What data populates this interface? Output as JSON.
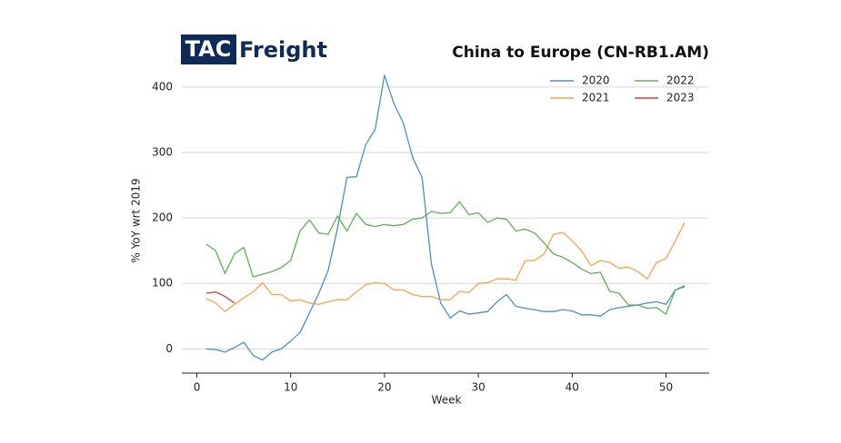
{
  "logo": {
    "left": "TAC",
    "right": "Freight"
  },
  "chart_data": {
    "type": "line",
    "title": "China to Europe (CN-RB1.AM)",
    "x_label": "Week",
    "y_label": "% YoY wrt 2019",
    "x": [
      1,
      2,
      3,
      4,
      5,
      6,
      7,
      8,
      9,
      10,
      11,
      12,
      13,
      14,
      15,
      16,
      17,
      18,
      19,
      20,
      21,
      22,
      23,
      24,
      25,
      26,
      27,
      28,
      29,
      30,
      31,
      32,
      33,
      34,
      35,
      36,
      37,
      38,
      39,
      40,
      41,
      42,
      43,
      44,
      45,
      46,
      47,
      48,
      49,
      50,
      51,
      52
    ],
    "series": [
      {
        "name": "2020",
        "color": "#4a8fc4",
        "values": [
          0,
          -1,
          -5,
          2,
          10,
          -10,
          -17,
          -5,
          0,
          12,
          25,
          55,
          85,
          120,
          185,
          262,
          263,
          312,
          335,
          418,
          375,
          345,
          292,
          262,
          130,
          70,
          47,
          58,
          53,
          55,
          57,
          72,
          83,
          65,
          62,
          60,
          57,
          57,
          60,
          58,
          52,
          52,
          50,
          60,
          63,
          65,
          67,
          70,
          72,
          68,
          90,
          95
        ]
      },
      {
        "name": "2021",
        "color": "#f5a24c",
        "values": [
          77,
          70,
          57,
          68,
          78,
          87,
          101,
          83,
          83,
          73,
          75,
          70,
          68,
          72,
          75,
          75,
          87,
          98,
          101,
          100,
          90,
          90,
          83,
          80,
          80,
          75,
          75,
          88,
          86,
          100,
          101,
          107,
          107,
          105,
          135,
          135,
          145,
          175,
          178,
          165,
          150,
          127,
          135,
          132,
          123,
          125,
          118,
          107,
          132,
          138,
          165,
          193
        ]
      },
      {
        "name": "2022",
        "color": "#5cb054",
        "values": [
          160,
          150,
          115,
          145,
          155,
          110,
          114,
          118,
          124,
          135,
          180,
          197,
          177,
          175,
          203,
          180,
          207,
          190,
          187,
          190,
          188,
          190,
          198,
          200,
          210,
          207,
          208,
          225,
          205,
          208,
          193,
          200,
          198,
          180,
          183,
          177,
          162,
          145,
          140,
          132,
          122,
          115,
          117,
          88,
          85,
          67,
          67,
          62,
          63,
          53,
          90,
          97
        ]
      },
      {
        "name": "2023",
        "color": "#d03a3a",
        "values": [
          85,
          87,
          80,
          70,
          null,
          null,
          null,
          null,
          null,
          null,
          null,
          null,
          null,
          null,
          null,
          null,
          null,
          null,
          null,
          null,
          null,
          null,
          null,
          null,
          null,
          null,
          null,
          null,
          null,
          null,
          null,
          null,
          null,
          null,
          null,
          null,
          null,
          null,
          null,
          null,
          null,
          null,
          null,
          null,
          null,
          null,
          null,
          null,
          null,
          null,
          null,
          null
        ]
      }
    ],
    "xlim": [
      -1.6,
      54.6
    ],
    "ylim": [
      -37,
      422
    ],
    "xticks": [
      0,
      10,
      20,
      30,
      40,
      50
    ],
    "yticks": [
      0,
      100,
      200,
      300,
      400
    ],
    "grid": true,
    "legend": "upper right"
  }
}
